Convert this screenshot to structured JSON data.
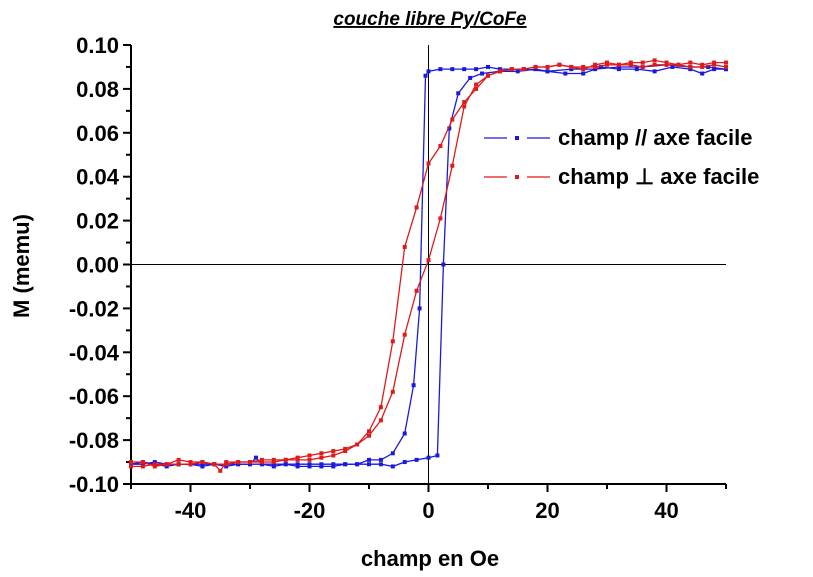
{
  "chart_data": {
    "type": "line",
    "title": "couche libre Py/CoFe",
    "xlabel": "champ en Oe",
    "ylabel": "M (memu)",
    "xlim": [
      -50,
      50
    ],
    "ylim": [
      -0.1,
      0.1
    ],
    "xticks": [
      -40,
      -20,
      0,
      20,
      40
    ],
    "xtick_labels": [
      "-40",
      "-20",
      "0",
      "20",
      "40"
    ],
    "yticks": [
      -0.1,
      -0.08,
      -0.06,
      -0.04,
      -0.02,
      0.0,
      0.02,
      0.04,
      0.06,
      0.08,
      0.1
    ],
    "ytick_labels": [
      "-0.10",
      "-0.08",
      "-0.06",
      "-0.04",
      "-0.02",
      "0.00",
      "0.02",
      "0.04",
      "0.06",
      "0.08",
      "0.10"
    ],
    "legend_position": "right",
    "grid": false,
    "series": [
      {
        "name": "champ // axe facile",
        "color": "#1a1adc",
        "branches": [
          [
            [
              -50,
              -0.091
            ],
            [
              -48,
              -0.09
            ],
            [
              -46,
              -0.091
            ],
            [
              -44,
              -0.092
            ],
            [
              -42,
              -0.091
            ],
            [
              -40,
              -0.091
            ],
            [
              -38,
              -0.091
            ],
            [
              -36,
              -0.091
            ],
            [
              -34,
              -0.092
            ],
            [
              -32,
              -0.091
            ],
            [
              -30,
              -0.091
            ],
            [
              -29,
              -0.088
            ],
            [
              -28,
              -0.091
            ],
            [
              -26,
              -0.092
            ],
            [
              -24,
              -0.091
            ],
            [
              -22,
              -0.092
            ],
            [
              -20,
              -0.092
            ],
            [
              -18,
              -0.092
            ],
            [
              -16,
              -0.092
            ],
            [
              -14,
              -0.091
            ],
            [
              -12,
              -0.091
            ],
            [
              -10,
              -0.091
            ],
            [
              -8,
              -0.091
            ],
            [
              -6,
              -0.092
            ],
            [
              -4,
              -0.09
            ],
            [
              -2,
              -0.089
            ],
            [
              0,
              -0.088
            ],
            [
              1.5,
              -0.087
            ],
            [
              2.5,
              0.0
            ],
            [
              3.5,
              0.062
            ],
            [
              5,
              0.078
            ],
            [
              7,
              0.085
            ],
            [
              9,
              0.087
            ],
            [
              12,
              0.088
            ],
            [
              15,
              0.088
            ],
            [
              18,
              0.089
            ],
            [
              20,
              0.088
            ],
            [
              23,
              0.087
            ],
            [
              26,
              0.087
            ],
            [
              29,
              0.09
            ],
            [
              32,
              0.089
            ],
            [
              35,
              0.089
            ],
            [
              38,
              0.088
            ],
            [
              41,
              0.09
            ],
            [
              44,
              0.089
            ],
            [
              46,
              0.087
            ],
            [
              48,
              0.089
            ],
            [
              50,
              0.089
            ]
          ],
          [
            [
              50,
              0.089
            ],
            [
              47,
              0.09
            ],
            [
              44,
              0.09
            ],
            [
              40,
              0.091
            ],
            [
              36,
              0.09
            ],
            [
              32,
              0.09
            ],
            [
              28,
              0.089
            ],
            [
              24,
              0.089
            ],
            [
              20,
              0.088
            ],
            [
              16,
              0.089
            ],
            [
              12,
              0.089
            ],
            [
              10,
              0.09
            ],
            [
              8,
              0.089
            ],
            [
              6,
              0.089
            ],
            [
              4,
              0.089
            ],
            [
              2,
              0.089
            ],
            [
              0,
              0.088
            ],
            [
              -0.5,
              0.086
            ],
            [
              -1.5,
              -0.02
            ],
            [
              -2.5,
              -0.055
            ],
            [
              -4,
              -0.077
            ],
            [
              -6,
              -0.086
            ],
            [
              -8,
              -0.089
            ],
            [
              -10,
              -0.089
            ],
            [
              -12,
              -0.091
            ],
            [
              -14,
              -0.091
            ],
            [
              -16,
              -0.091
            ],
            [
              -18,
              -0.091
            ],
            [
              -20,
              -0.091
            ],
            [
              -22,
              -0.091
            ],
            [
              -24,
              -0.091
            ],
            [
              -26,
              -0.091
            ],
            [
              -28,
              -0.091
            ],
            [
              -30,
              -0.091
            ],
            [
              -32,
              -0.091
            ],
            [
              -34,
              -0.091
            ],
            [
              -36,
              -0.091
            ],
            [
              -38,
              -0.092
            ],
            [
              -40,
              -0.091
            ],
            [
              -42,
              -0.091
            ],
            [
              -44,
              -0.091
            ],
            [
              -46,
              -0.09
            ],
            [
              -48,
              -0.091
            ],
            [
              -50,
              -0.091
            ]
          ]
        ]
      },
      {
        "name": "champ ⊥ axe facile",
        "color": "#e01a1a",
        "branches": [
          [
            [
              -50,
              -0.09
            ],
            [
              -48,
              -0.09
            ],
            [
              -46,
              -0.092
            ],
            [
              -44,
              -0.091
            ],
            [
              -42,
              -0.089
            ],
            [
              -40,
              -0.09
            ],
            [
              -38,
              -0.09
            ],
            [
              -36,
              -0.091
            ],
            [
              -35,
              -0.094
            ],
            [
              -34,
              -0.09
            ],
            [
              -32,
              -0.09
            ],
            [
              -30,
              -0.09
            ],
            [
              -28,
              -0.089
            ],
            [
              -26,
              -0.089
            ],
            [
              -24,
              -0.089
            ],
            [
              -22,
              -0.088
            ],
            [
              -20,
              -0.087
            ],
            [
              -18,
              -0.086
            ],
            [
              -16,
              -0.085
            ],
            [
              -14,
              -0.084
            ],
            [
              -12,
              -0.082
            ],
            [
              -10,
              -0.078
            ],
            [
              -8,
              -0.071
            ],
            [
              -6,
              -0.058
            ],
            [
              -4,
              -0.032
            ],
            [
              -2,
              -0.012
            ],
            [
              0,
              0.002
            ],
            [
              2,
              0.021
            ],
            [
              4,
              0.045
            ],
            [
              6,
              0.072
            ],
            [
              8,
              0.082
            ],
            [
              10,
              0.086
            ],
            [
              12,
              0.088
            ],
            [
              14,
              0.089
            ],
            [
              16,
              0.089
            ],
            [
              18,
              0.09
            ],
            [
              20,
              0.09
            ],
            [
              22,
              0.091
            ],
            [
              24,
              0.09
            ],
            [
              26,
              0.089
            ],
            [
              28,
              0.091
            ],
            [
              30,
              0.092
            ],
            [
              32,
              0.091
            ],
            [
              34,
              0.092
            ],
            [
              36,
              0.092
            ],
            [
              38,
              0.093
            ],
            [
              40,
              0.092
            ],
            [
              42,
              0.091
            ],
            [
              44,
              0.092
            ],
            [
              46,
              0.091
            ],
            [
              48,
              0.092
            ],
            [
              50,
              0.092
            ]
          ],
          [
            [
              50,
              0.09
            ],
            [
              48,
              0.091
            ],
            [
              46,
              0.09
            ],
            [
              44,
              0.09
            ],
            [
              42,
              0.091
            ],
            [
              40,
              0.091
            ],
            [
              38,
              0.091
            ],
            [
              36,
              0.09
            ],
            [
              34,
              0.091
            ],
            [
              32,
              0.091
            ],
            [
              30,
              0.091
            ],
            [
              28,
              0.09
            ],
            [
              26,
              0.09
            ],
            [
              24,
              0.09
            ],
            [
              22,
              0.091
            ],
            [
              20,
              0.09
            ],
            [
              18,
              0.09
            ],
            [
              16,
              0.089
            ],
            [
              14,
              0.089
            ],
            [
              12,
              0.088
            ],
            [
              10,
              0.086
            ],
            [
              8,
              0.08
            ],
            [
              6,
              0.074
            ],
            [
              4,
              0.066
            ],
            [
              2,
              0.054
            ],
            [
              0,
              0.046
            ],
            [
              -2,
              0.026
            ],
            [
              -4,
              0.008
            ],
            [
              -6,
              -0.035
            ],
            [
              -8,
              -0.065
            ],
            [
              -10,
              -0.076
            ],
            [
              -12,
              -0.082
            ],
            [
              -14,
              -0.085
            ],
            [
              -16,
              -0.087
            ],
            [
              -18,
              -0.088
            ],
            [
              -20,
              -0.089
            ],
            [
              -22,
              -0.089
            ],
            [
              -24,
              -0.089
            ],
            [
              -26,
              -0.09
            ],
            [
              -28,
              -0.09
            ],
            [
              -30,
              -0.09
            ],
            [
              -32,
              -0.09
            ],
            [
              -34,
              -0.091
            ],
            [
              -36,
              -0.091
            ],
            [
              -38,
              -0.09
            ],
            [
              -40,
              -0.091
            ],
            [
              -42,
              -0.091
            ],
            [
              -44,
              -0.091
            ],
            [
              -46,
              -0.091
            ],
            [
              -48,
              -0.092
            ],
            [
              -50,
              -0.092
            ]
          ]
        ]
      }
    ]
  }
}
